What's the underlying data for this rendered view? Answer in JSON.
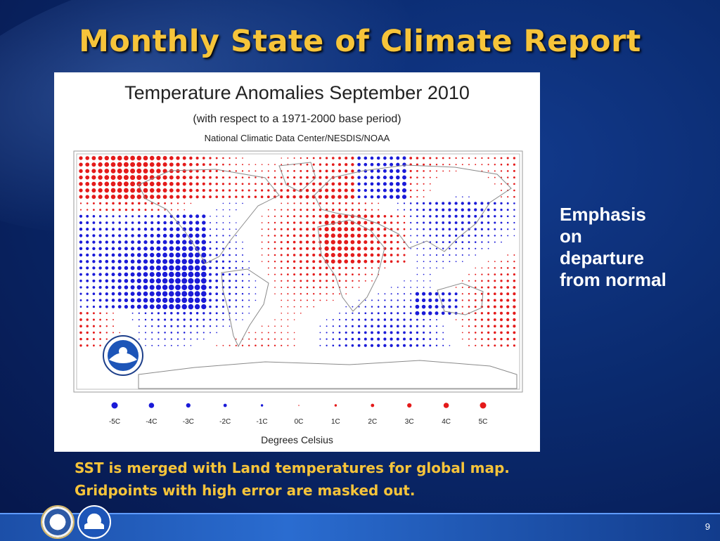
{
  "slide": {
    "title": "Monthly State of Climate Report",
    "side_note": [
      "Emphasis",
      "on",
      "departure",
      "from normal"
    ],
    "footer_lines": [
      "SST is merged with Land temperatures for global map.",
      "Gridpoints with high error are masked out."
    ],
    "page_number": "9"
  },
  "map": {
    "title": "Temperature Anomalies September 2010",
    "subtitle": "(with respect to a 1971-2000 base period)",
    "source": "National Climatic Data Center/NESDIS/NOAA",
    "legend_caption": "Degrees Celsius",
    "legend": [
      {
        "label": "-5C",
        "value": -5
      },
      {
        "label": "-4C",
        "value": -4
      },
      {
        "label": "-3C",
        "value": -3
      },
      {
        "label": "-2C",
        "value": -2
      },
      {
        "label": "-1C",
        "value": -1
      },
      {
        "label": "0C",
        "value": 0
      },
      {
        "label": "1C",
        "value": 1
      },
      {
        "label": "2C",
        "value": 2
      },
      {
        "label": "3C",
        "value": 3
      },
      {
        "label": "4C",
        "value": 4
      },
      {
        "label": "5C",
        "value": 5
      }
    ],
    "colors": {
      "warm": "#e41a1a",
      "cold": "#1a1ad8",
      "land_outline": "#8a8a8a"
    },
    "logo_icon": "noaa-logo-icon"
  }
}
